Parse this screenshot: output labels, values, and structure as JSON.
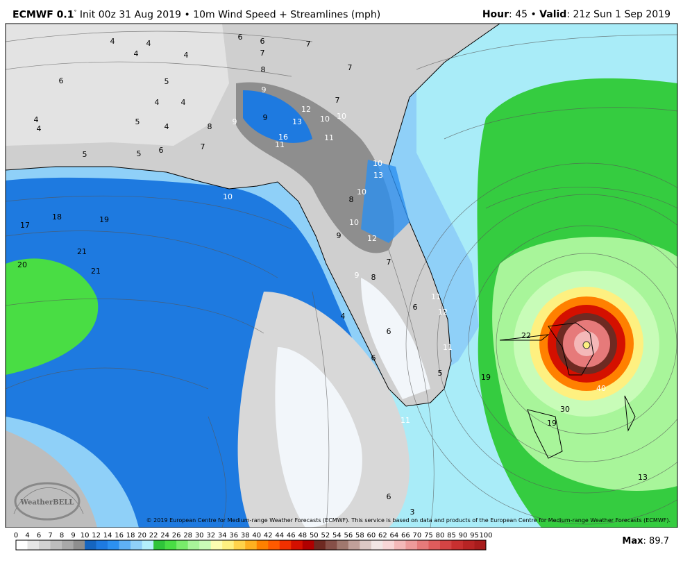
{
  "header": {
    "model": "ECMWF 0.1",
    "degree": "°",
    "description": "Init 00z 31 Aug 2019 • 10m Wind Speed + Streamlines (mph)",
    "hour_label": "Hour",
    "hour_value": ": 45 • ",
    "valid_label": "Valid",
    "valid_value": ": 21z Sun 1 Sep 2019"
  },
  "map": {
    "copyright": "© 2019 European Centre for Medium-range Weather Forecasts (ECMWF). This service is based on data and products of the European Centre for Medium-range Weather Forecasts (ECMWF).",
    "logo": "WeatherBELL",
    "labels": [
      "4",
      "4",
      "4",
      "4",
      "6",
      "5",
      "4",
      "4",
      "5",
      "4",
      "4",
      "4",
      "5",
      "5",
      "6",
      "7",
      "8",
      "6",
      "6",
      "7",
      "7",
      "8",
      "9",
      "12",
      "13",
      "10",
      "10",
      "16",
      "11",
      "11",
      "10",
      "13",
      "10",
      "8",
      "10",
      "12",
      "9",
      "7",
      "9",
      "8",
      "11",
      "12",
      "6",
      "6",
      "4",
      "11",
      "6",
      "5",
      "11",
      "19",
      "22",
      "40",
      "30",
      "19",
      "21",
      "21",
      "20",
      "19",
      "18",
      "17",
      "3",
      "6",
      "13",
      "10",
      "9",
      "7",
      "7",
      "9"
    ]
  },
  "colorbar": {
    "labels": [
      "0",
      "4",
      "6",
      "7",
      "8",
      "9",
      "10",
      "12",
      "14",
      "16",
      "18",
      "20",
      "22",
      "24",
      "26",
      "28",
      "30",
      "32",
      "34",
      "36",
      "38",
      "40",
      "42",
      "44",
      "46",
      "48",
      "50",
      "52",
      "54",
      "56",
      "58",
      "60",
      "62",
      "64",
      "66",
      "70",
      "75",
      "80",
      "85",
      "90",
      "95",
      "100"
    ],
    "colors": [
      "#ffffff",
      "#e6e6e6",
      "#d2d2d2",
      "#bdbdbd",
      "#a8a8a8",
      "#8e8e8e",
      "#1565c0",
      "#1e7ae0",
      "#2c90f0",
      "#5fb0f5",
      "#8fd0f8",
      "#b3f0fb",
      "#2fc43a",
      "#49dd44",
      "#78ec6a",
      "#a8f59a",
      "#c8fcb8",
      "#fdfdb0",
      "#fef080",
      "#ffd34a",
      "#ffb020",
      "#ff8000",
      "#ff5a00",
      "#f03000",
      "#d41000",
      "#b00000",
      "#6e2a22",
      "#865048",
      "#a0786e",
      "#c0a09a",
      "#dcc8c4",
      "#f2e6e4",
      "#f8d6d6",
      "#f4b8b8",
      "#ee9a9a",
      "#e67a7a",
      "#de5c5c",
      "#d44444",
      "#c83030",
      "#b82424",
      "#a81c1c"
    ]
  },
  "max": {
    "label": "Max",
    "value": ": 89.7"
  }
}
